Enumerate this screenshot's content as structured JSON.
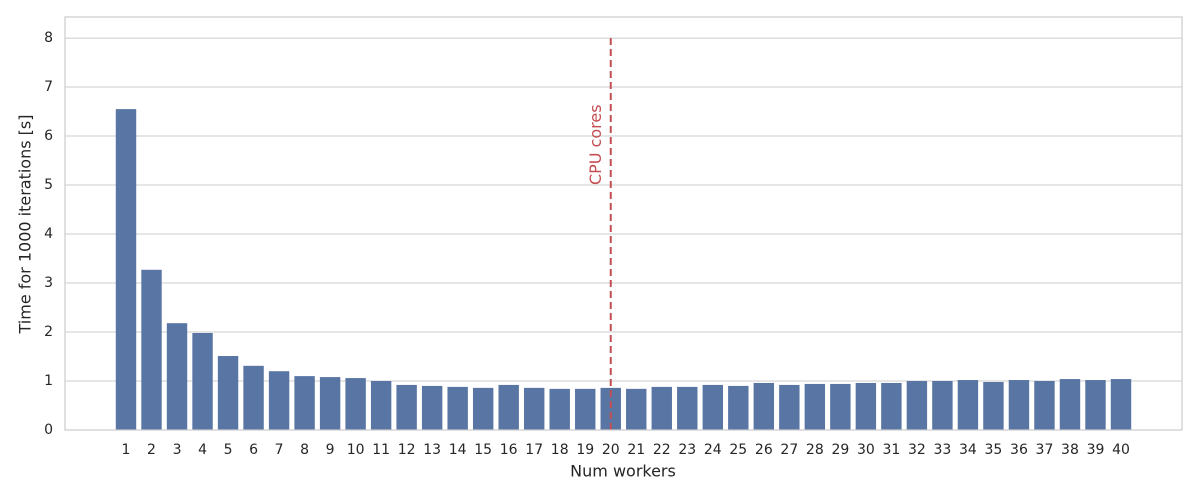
{
  "chart_data": {
    "type": "bar",
    "x_label": "Num workers",
    "y_label": "Time for 1000 iterations [s]",
    "categories": [
      "1",
      "2",
      "3",
      "4",
      "5",
      "6",
      "7",
      "8",
      "9",
      "10",
      "11",
      "12",
      "13",
      "14",
      "15",
      "16",
      "17",
      "18",
      "19",
      "20",
      "21",
      "22",
      "23",
      "24",
      "25",
      "26",
      "27",
      "28",
      "29",
      "30",
      "31",
      "32",
      "33",
      "34",
      "35",
      "36",
      "37",
      "38",
      "39",
      "40"
    ],
    "values": [
      6.55,
      3.27,
      2.18,
      1.98,
      1.51,
      1.31,
      1.2,
      1.1,
      1.08,
      1.06,
      1.0,
      0.92,
      0.9,
      0.88,
      0.86,
      0.92,
      0.86,
      0.84,
      0.84,
      0.86,
      0.84,
      0.88,
      0.88,
      0.92,
      0.9,
      0.96,
      0.92,
      0.94,
      0.94,
      0.96,
      0.96,
      1.0,
      1.0,
      1.02,
      0.98,
      1.02,
      1.0,
      1.04,
      1.02,
      1.04
    ],
    "color": "#5975a4",
    "ylim": [
      0,
      8.43
    ],
    "yticks": [
      0,
      1,
      2,
      3,
      4,
      5,
      6,
      7,
      8
    ],
    "grid": true,
    "vline": {
      "x": "20",
      "label": "CPU cores",
      "color": "#c44e52",
      "y_range": [
        0,
        8
      ],
      "label_y": 5
    }
  }
}
